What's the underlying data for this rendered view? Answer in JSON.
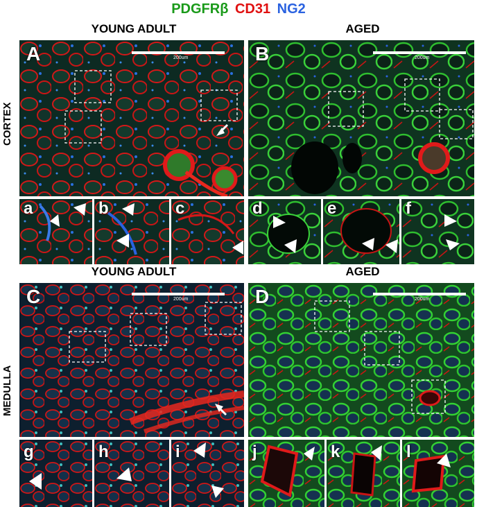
{
  "legend": {
    "pdgfrb": "PDGFRβ",
    "cd31": "CD31",
    "ng2": "NG2",
    "colors": {
      "pdgfrb": "#1a9a1a",
      "cd31": "#e01010",
      "ng2": "#2a62e0"
    }
  },
  "titles": {
    "young_top": "YOUNG ADULT",
    "aged_top": "AGED",
    "young_bottom": "YOUNG ADULT",
    "aged_bottom": "AGED"
  },
  "rows": {
    "cortex": "CORTEX",
    "medulla": "MEDULLA"
  },
  "panels": {
    "A": "A",
    "B": "B",
    "C": "C",
    "D": "D"
  },
  "subpanels": {
    "a": "a",
    "b": "b",
    "c": "c",
    "d": "d",
    "e": "e",
    "f": "f",
    "g": "g",
    "h": "h",
    "i": "i",
    "j": "j",
    "k": "k",
    "l": "l"
  },
  "scale": "200um"
}
